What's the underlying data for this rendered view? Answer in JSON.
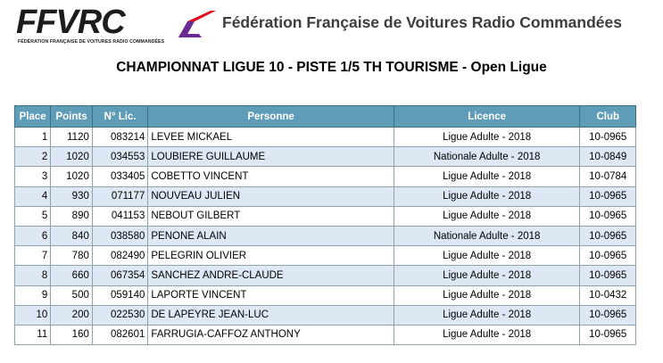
{
  "header": {
    "logo_text": "FFVRC",
    "logo_subtitle": "FÉDÉRATION FRANÇAISE DE VOITURES RADIO COMMANDÉES",
    "org_name": "Fédération Française de Voitures Radio Commandées",
    "brand_colors": {
      "red": "#e0001a",
      "purple": "#6b2c91",
      "dark": "#1c1c1c"
    }
  },
  "title": "CHAMPIONNAT LIGUE 10 - PISTE 1/5 TH TOURISME - Open Ligue",
  "table": {
    "header_color": "#5f9cb8",
    "stripe_color": "#dde8f4",
    "columns": [
      "Place",
      "Points",
      "N° Lic.",
      "Personne",
      "Licence",
      "Club"
    ],
    "rows": [
      [
        "1",
        "1120",
        "083214",
        "LEVEE MICKAEL",
        "Ligue Adulte - 2018",
        "10-0965"
      ],
      [
        "2",
        "1020",
        "034553",
        "LOUBIERE GUILLAUME",
        "Nationale Adulte - 2018",
        "10-0849"
      ],
      [
        "3",
        "1020",
        "033405",
        "COBETTO VINCENT",
        "Ligue Adulte - 2018",
        "10-0784"
      ],
      [
        "4",
        "930",
        "071177",
        "NOUVEAU JULIEN",
        "Ligue Adulte - 2018",
        "10-0965"
      ],
      [
        "5",
        "890",
        "041153",
        "NEBOUT GILBERT",
        "Ligue Adulte - 2018",
        "10-0965"
      ],
      [
        "6",
        "840",
        "038580",
        "PENONE ALAIN",
        "Nationale Adulte - 2018",
        "10-0965"
      ],
      [
        "7",
        "780",
        "082490",
        "PELEGRIN OLIVIER",
        "Ligue Adulte - 2018",
        "10-0965"
      ],
      [
        "8",
        "660",
        "067354",
        "SANCHEZ ANDRE-CLAUDE",
        "Ligue Adulte - 2018",
        "10-0965"
      ],
      [
        "9",
        "500",
        "059140",
        "LAPORTE VINCENT",
        "Ligue Adulte - 2018",
        "10-0432"
      ],
      [
        "10",
        "200",
        "022530",
        "DE LAPEYRE JEAN-LUC",
        "Ligue Adulte - 2018",
        "10-0965"
      ],
      [
        "11",
        "160",
        "082601",
        "FARRUGIA-CAFFOZ ANTHONY",
        "Ligue Adulte - 2018",
        "10-0965"
      ]
    ]
  }
}
